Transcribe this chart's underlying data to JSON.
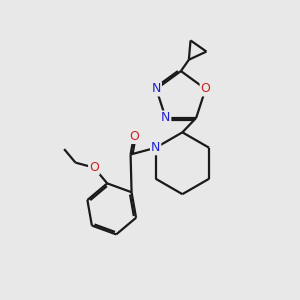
{
  "background_color": "#e8e8e8",
  "bond_color": "#1a1a1a",
  "N_color": "#2222cc",
  "O_color": "#cc2222",
  "lw": 1.6,
  "fs": 8.5,
  "xlim": [
    0,
    10
  ],
  "ylim": [
    0,
    10
  ]
}
